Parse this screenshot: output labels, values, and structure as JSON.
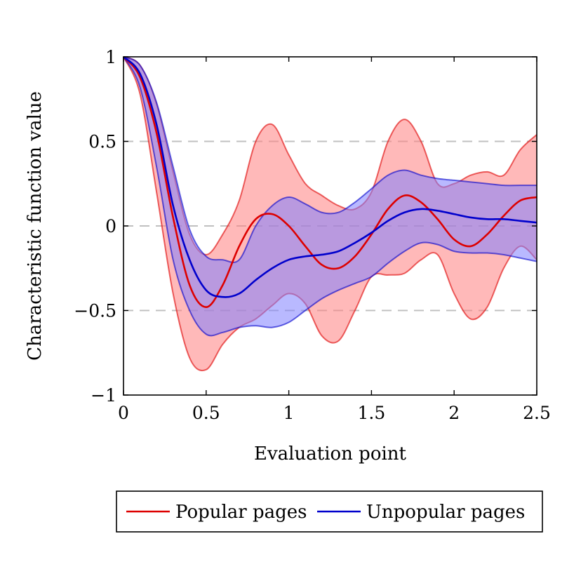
{
  "chart_data": {
    "type": "line",
    "title": "",
    "xlabel": "Evaluation point",
    "ylabel": "Characteristic function value",
    "xlim": [
      0,
      2.5
    ],
    "ylim": [
      -1,
      1
    ],
    "xticks": [
      0,
      0.5,
      1,
      1.5,
      2,
      2.5
    ],
    "xtick_labels": [
      "0",
      "0.5",
      "1",
      "1.5",
      "2",
      "2.5"
    ],
    "yticks": [
      -1,
      -0.5,
      0,
      0.5,
      1
    ],
    "ytick_labels": [
      "−1",
      "−0.5",
      "0",
      "0.5",
      "1"
    ],
    "grid": "dashed horizontal at y = -0.5, 0, 0.5",
    "legend_position": "bottom-center",
    "series": [
      {
        "name": "Popular pages",
        "color": "#dd0000",
        "band_color": "#ff8080",
        "x": [
          0,
          0.1,
          0.2,
          0.3,
          0.4,
          0.5,
          0.6,
          0.7,
          0.8,
          0.9,
          1.0,
          1.1,
          1.2,
          1.3,
          1.4,
          1.5,
          1.6,
          1.7,
          1.8,
          1.9,
          2.0,
          2.1,
          2.2,
          2.3,
          2.4,
          2.5
        ],
        "values": [
          1.0,
          0.88,
          0.55,
          0.05,
          -0.35,
          -0.48,
          -0.35,
          -0.12,
          0.04,
          0.07,
          0.0,
          -0.12,
          -0.23,
          -0.25,
          -0.18,
          -0.05,
          0.1,
          0.18,
          0.14,
          0.04,
          -0.08,
          -0.12,
          -0.05,
          0.06,
          0.15,
          0.17
        ],
        "upper": [
          1.0,
          0.95,
          0.72,
          0.32,
          -0.05,
          -0.17,
          -0.05,
          0.15,
          0.5,
          0.6,
          0.42,
          0.25,
          0.18,
          0.12,
          0.1,
          0.2,
          0.5,
          0.63,
          0.5,
          0.25,
          0.25,
          0.3,
          0.32,
          0.3,
          0.45,
          0.54
        ],
        "lower": [
          1.0,
          0.78,
          0.2,
          -0.4,
          -0.78,
          -0.85,
          -0.7,
          -0.6,
          -0.55,
          -0.47,
          -0.4,
          -0.46,
          -0.65,
          -0.68,
          -0.5,
          -0.3,
          -0.29,
          -0.28,
          -0.2,
          -0.17,
          -0.4,
          -0.55,
          -0.48,
          -0.25,
          -0.12,
          -0.2
        ]
      },
      {
        "name": "Unpopular pages",
        "color": "#0000cc",
        "band_color": "#8080ff",
        "x": [
          0,
          0.1,
          0.2,
          0.3,
          0.4,
          0.5,
          0.6,
          0.7,
          0.8,
          0.9,
          1.0,
          1.1,
          1.2,
          1.3,
          1.4,
          1.5,
          1.6,
          1.7,
          1.8,
          1.9,
          2.0,
          2.1,
          2.2,
          2.3,
          2.4,
          2.5
        ],
        "values": [
          1.0,
          0.9,
          0.6,
          0.12,
          -0.2,
          -0.38,
          -0.42,
          -0.4,
          -0.32,
          -0.25,
          -0.2,
          -0.18,
          -0.17,
          -0.15,
          -0.1,
          -0.04,
          0.03,
          0.08,
          0.1,
          0.09,
          0.07,
          0.05,
          0.04,
          0.04,
          0.03,
          0.02
        ],
        "upper": [
          1.0,
          0.95,
          0.73,
          0.35,
          -0.02,
          -0.18,
          -0.2,
          -0.2,
          0.0,
          0.12,
          0.17,
          0.13,
          0.08,
          0.08,
          0.14,
          0.22,
          0.3,
          0.33,
          0.3,
          0.28,
          0.27,
          0.26,
          0.25,
          0.24,
          0.24,
          0.24
        ],
        "lower": [
          1.0,
          0.82,
          0.35,
          -0.2,
          -0.5,
          -0.64,
          -0.63,
          -0.6,
          -0.59,
          -0.6,
          -0.57,
          -0.5,
          -0.43,
          -0.38,
          -0.34,
          -0.3,
          -0.22,
          -0.15,
          -0.1,
          -0.11,
          -0.15,
          -0.16,
          -0.16,
          -0.17,
          -0.19,
          -0.21
        ]
      }
    ]
  }
}
